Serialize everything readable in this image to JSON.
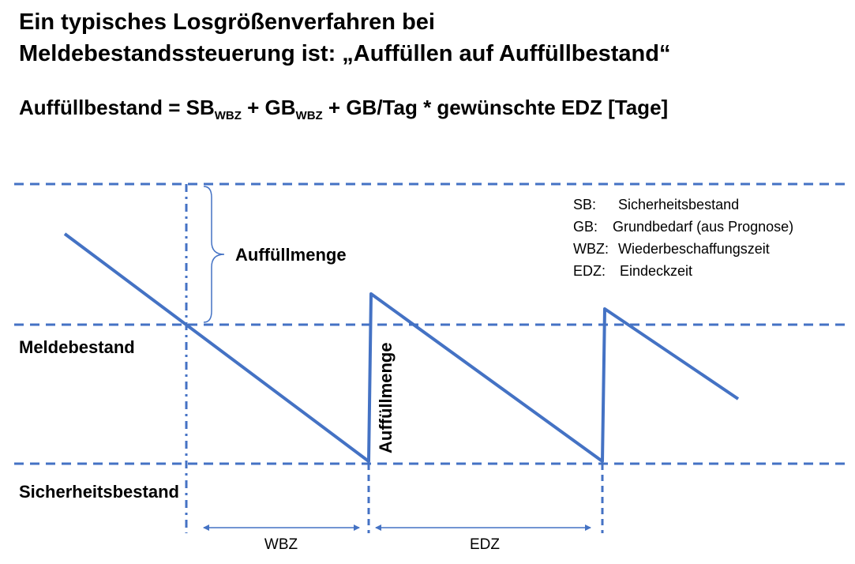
{
  "header": {
    "title_line1": "Ein typisches Losgrößenverfahren bei",
    "title_line2": "Meldebestandssteuerung ist: „Auffüllen auf Auffüllbestand“"
  },
  "formula": {
    "lhs": "Auffüllbestand = SB",
    "sub1": "WBZ",
    "mid": " + GB",
    "sub2": "WBZ",
    "rhs": " + GB/Tag * gewünschte EDZ [Tage]"
  },
  "diagram": {
    "label_auffuellmenge_top": "Auffüllmenge",
    "label_auffuellmenge_vertical": "Auffüllmenge",
    "label_meldebestand": "Meldebestand",
    "label_sicherheitsbestand": "Sicherheitsbestand",
    "label_wbz": "WBZ",
    "label_edz": "EDZ",
    "line_color": "#4472C4"
  },
  "legend": [
    {
      "abbr": "SB:",
      "text": "Sicherheitsbestand"
    },
    {
      "abbr": "GB:",
      "text": "Grundbedarf (aus Prognose)"
    },
    {
      "abbr": "WBZ:",
      "text": "Wiederbeschaffungszeit"
    },
    {
      "abbr": "EDZ:",
      "text": "Eindeckzeit"
    }
  ]
}
